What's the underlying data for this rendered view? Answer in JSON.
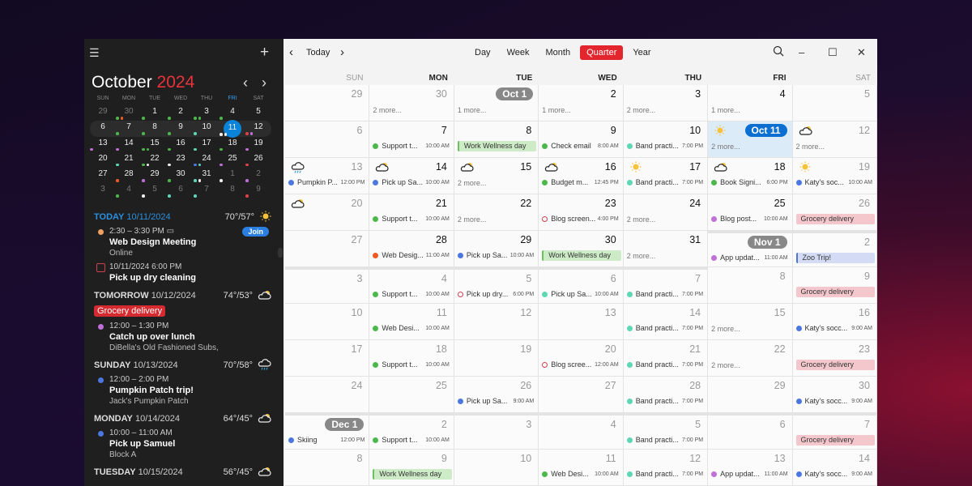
{
  "colors": {
    "green": "#4cb84c",
    "teal": "#5fd6b4",
    "blue": "#4a78e0",
    "purple": "#c070d8",
    "orange": "#ee5a20",
    "red": "#e0404a",
    "white": "#eeeeee",
    "accent": "#e3262d",
    "today": "#0a84d8",
    "wellness": "#cdebc6",
    "wellnessBar": "#6cc060",
    "grocery": "#f4c7cc",
    "zoo": "#d3dcf4",
    "zooBar": "#5077d0"
  },
  "sidebar": {
    "month": "October",
    "year": "2024",
    "menu_icon": "hamburger-icon",
    "add_icon": "plus-icon",
    "weekdays": [
      "SUN",
      "MON",
      "TUE",
      "WED",
      "THU",
      "FRI",
      "SAT"
    ],
    "mini_weeks": [
      [
        {
          "d": "29",
          "o": 1
        },
        {
          "d": "30",
          "o": 1,
          "dots": [
            "green",
            "orange"
          ]
        },
        {
          "d": "1",
          "dots": [
            "green"
          ]
        },
        {
          "d": "2",
          "dots": [
            "green"
          ]
        },
        {
          "d": "3",
          "dots": [
            "green",
            "green"
          ]
        },
        {
          "d": "4",
          "dots": [
            "green"
          ]
        },
        {
          "d": "5"
        }
      ],
      [
        {
          "d": "6"
        },
        {
          "d": "7",
          "dots": [
            "green"
          ]
        },
        {
          "d": "8",
          "dots": [
            "green"
          ]
        },
        {
          "d": "9",
          "dots": [
            "green"
          ]
        },
        {
          "d": "10",
          "dots": [
            "teal"
          ]
        },
        {
          "d": "11",
          "today": 1,
          "dots": [
            "white",
            "white"
          ]
        },
        {
          "d": "12",
          "dots": [
            "red",
            "purple"
          ]
        }
      ],
      [
        {
          "d": "13",
          "dots": [
            "purple"
          ]
        },
        {
          "d": "14",
          "dots": [
            "purple"
          ]
        },
        {
          "d": "15",
          "dots": [
            "green",
            "green"
          ]
        },
        {
          "d": "16",
          "dots": [
            "green"
          ]
        },
        {
          "d": "17",
          "dots": [
            "teal"
          ]
        },
        {
          "d": "18",
          "dots": [
            "green"
          ]
        },
        {
          "d": "19",
          "dots": [
            "purple"
          ]
        }
      ],
      [
        {
          "d": "20"
        },
        {
          "d": "21",
          "dots": [
            "teal"
          ]
        },
        {
          "d": "22",
          "dots": [
            "green",
            "white"
          ]
        },
        {
          "d": "23",
          "dots": [
            "white"
          ]
        },
        {
          "d": "24",
          "dots": [
            "blue",
            "teal"
          ]
        },
        {
          "d": "25",
          "dots": [
            "purple"
          ]
        },
        {
          "d": "26",
          "dots": [
            "red"
          ]
        }
      ],
      [
        {
          "d": "27"
        },
        {
          "d": "28",
          "dots": [
            "orange"
          ]
        },
        {
          "d": "29",
          "dots": [
            "purple"
          ]
        },
        {
          "d": "30",
          "dots": [
            "green"
          ]
        },
        {
          "d": "31",
          "dots": [
            "teal",
            "white"
          ]
        },
        {
          "d": "1",
          "o": 1,
          "dots": [
            "white"
          ]
        },
        {
          "d": "2",
          "o": 1,
          "dots": [
            "purple"
          ]
        }
      ],
      [
        {
          "d": "3",
          "o": 1
        },
        {
          "d": "4",
          "o": 1,
          "dots": [
            "green"
          ]
        },
        {
          "d": "5",
          "o": 1,
          "dots": [
            "white"
          ]
        },
        {
          "d": "6",
          "o": 1,
          "dots": [
            "teal"
          ]
        },
        {
          "d": "7",
          "o": 1,
          "dots": [
            "teal"
          ]
        },
        {
          "d": "8",
          "o": 1
        },
        {
          "d": "9",
          "o": 1,
          "dots": [
            "red"
          ]
        }
      ]
    ],
    "agenda": [
      {
        "day": "TODAY",
        "date": "10/11/2024",
        "temp": "70°/57°",
        "weather": "sun",
        "today": true,
        "items": [
          {
            "kind": "dot",
            "color": "#f0a060",
            "time": "2:30 – 3:30 PM",
            "video": "video-icon",
            "title": "Web Design Meeting",
            "loc": "Online",
            "join": "Join"
          },
          {
            "kind": "task",
            "time": "10/11/2024 6:00 PM",
            "title": "Pick up dry cleaning"
          }
        ]
      },
      {
        "day": "TOMORROW",
        "date": "10/12/2024",
        "temp": "74°/53°",
        "weather": "partly-cloudy",
        "allday": "Grocery delivery",
        "items": [
          {
            "kind": "dot",
            "color": "#c070d8",
            "time": "12:00 – 1:30 PM",
            "title": "Catch up over lunch",
            "loc": "DiBella's Old Fashioned Subs,"
          }
        ]
      },
      {
        "day": "SUNDAY",
        "date": "10/13/2024",
        "temp": "70°/58°",
        "weather": "rain",
        "items": [
          {
            "kind": "dot",
            "color": "#4a78e0",
            "time": "12:00 – 2:00 PM",
            "title": "Pumpkin Patch trip!",
            "loc": "Jack's Pumpkin Patch"
          }
        ]
      },
      {
        "day": "MONDAY",
        "date": "10/14/2024",
        "temp": "64°/45°",
        "weather": "partly-cloudy",
        "items": [
          {
            "kind": "dot",
            "color": "#4a78e0",
            "time": "10:00 – 11:00 AM",
            "title": "Pick up Samuel",
            "loc": "Block A"
          }
        ]
      },
      {
        "day": "TUESDAY",
        "date": "10/15/2024",
        "temp": "56°/45°",
        "weather": "partly-cloudy",
        "items": []
      }
    ]
  },
  "toolbar": {
    "prev": "‹",
    "today": "Today",
    "next": "›",
    "views": [
      "Day",
      "Week",
      "Month",
      "Quarter",
      "Year"
    ],
    "active_view": "Quarter",
    "search_icon": "search-icon"
  },
  "grid": {
    "weekdays": [
      "SUN",
      "MON",
      "TUE",
      "WED",
      "THU",
      "FRI",
      "SAT"
    ],
    "weeks": [
      [
        {
          "d": "29",
          "m": "p"
        },
        {
          "d": "30",
          "m": "p",
          "more": "2 more..."
        },
        {
          "badge": "Oct 1",
          "more": "1 more..."
        },
        {
          "d": "2",
          "more": "1 more..."
        },
        {
          "d": "3",
          "more": "2 more..."
        },
        {
          "d": "4",
          "more": "1 more..."
        },
        {
          "d": "5"
        }
      ],
      [
        {
          "d": "6"
        },
        {
          "d": "7",
          "ev": {
            "c": "green",
            "t": "Support t...",
            "tm": "10:00 AM"
          }
        },
        {
          "d": "8",
          "all": {
            "t": "Work Wellness day",
            "k": "wellness"
          }
        },
        {
          "d": "9",
          "ev": {
            "c": "green",
            "t": "Check email",
            "tm": "8:00 AM"
          }
        },
        {
          "d": "10",
          "ev": {
            "c": "teal",
            "t": "Band practi...",
            "tm": "7:00 PM"
          }
        },
        {
          "badge": "Oct 11",
          "today": true,
          "wx": "sun",
          "more": "2 more..."
        },
        {
          "d": "12",
          "wx": "partly-cloudy",
          "more": "2 more..."
        }
      ],
      [
        {
          "d": "13",
          "wx": "rain",
          "ev": {
            "c": "blue",
            "t": "Pumpkin P...",
            "tm": "12:00 PM"
          }
        },
        {
          "d": "14",
          "wx": "partly-cloudy",
          "ev": {
            "c": "blue",
            "t": "Pick up Sa...",
            "tm": "10:00 AM"
          }
        },
        {
          "d": "15",
          "wx": "partly-cloudy",
          "more": "2 more..."
        },
        {
          "d": "16",
          "wx": "partly-cloudy",
          "ev": {
            "c": "green",
            "t": "Budget m...",
            "tm": "12:45 PM"
          }
        },
        {
          "d": "17",
          "wx": "sun",
          "ev": {
            "c": "teal",
            "t": "Band practi...",
            "tm": "7:00 PM"
          }
        },
        {
          "d": "18",
          "wx": "partly-cloudy",
          "ev": {
            "c": "green",
            "t": "Book Signi...",
            "tm": "6:00 PM"
          }
        },
        {
          "d": "19",
          "wx": "sun",
          "ev": {
            "c": "blue",
            "t": "Katy's soc...",
            "tm": "10:00 AM"
          }
        }
      ],
      [
        {
          "d": "20",
          "wx": "partly-cloudy"
        },
        {
          "d": "21",
          "ev": {
            "c": "green",
            "t": "Support t...",
            "tm": "10:00 AM"
          }
        },
        {
          "d": "22",
          "more": "2 more..."
        },
        {
          "d": "23",
          "ev": {
            "c": "red",
            "o": true,
            "t": "Blog screen...",
            "tm": "4:00 PM"
          }
        },
        {
          "d": "24",
          "more": "2 more..."
        },
        {
          "d": "25",
          "ev": {
            "c": "purple",
            "t": "Blog post...",
            "tm": "10:00 AM"
          }
        },
        {
          "d": "26",
          "all": {
            "t": "Grocery delivery",
            "k": "grocery"
          }
        }
      ],
      [
        {
          "d": "27"
        },
        {
          "d": "28",
          "ev": {
            "c": "orange",
            "t": "Web Desig...",
            "tm": "11:00 AM"
          }
        },
        {
          "d": "29",
          "ev": {
            "c": "blue",
            "t": "Pick up Sa...",
            "tm": "10:00 AM"
          }
        },
        {
          "d": "30",
          "all": {
            "t": "Work Wellness day",
            "k": "wellness"
          }
        },
        {
          "d": "31",
          "more": "2 more..."
        },
        {
          "badge": "Nov 1",
          "m": "n",
          "ev": {
            "c": "purple",
            "t": "App updat...",
            "tm": "11:00 AM"
          }
        },
        {
          "d": "2",
          "m": "n",
          "all": {
            "t": "Zoo Trip!",
            "k": "zoo"
          }
        }
      ],
      [
        {
          "d": "3",
          "m": "n"
        },
        {
          "d": "4",
          "m": "n",
          "ev": {
            "c": "green",
            "t": "Support t...",
            "tm": "10:00 AM"
          }
        },
        {
          "d": "5",
          "m": "n",
          "ev": {
            "c": "red",
            "o": true,
            "t": "Pick up dry...",
            "tm": "6:00 PM"
          }
        },
        {
          "d": "6",
          "m": "n",
          "ev": {
            "c": "teal",
            "t": "Pick up Sa...",
            "tm": "10:00 AM"
          }
        },
        {
          "d": "7",
          "m": "n",
          "ev": {
            "c": "teal",
            "t": "Band practi...",
            "tm": "7:00 PM"
          }
        },
        {
          "d": "8",
          "m": "n"
        },
        {
          "d": "9",
          "m": "n",
          "all": {
            "t": "Grocery delivery",
            "k": "grocery"
          }
        }
      ],
      [
        {
          "d": "10",
          "m": "n"
        },
        {
          "d": "11",
          "m": "n",
          "ev": {
            "c": "green",
            "t": "Web Desi...",
            "tm": "10:00 AM"
          }
        },
        {
          "d": "12",
          "m": "n"
        },
        {
          "d": "13",
          "m": "n"
        },
        {
          "d": "14",
          "m": "n",
          "ev": {
            "c": "teal",
            "t": "Band practi...",
            "tm": "7:00 PM"
          }
        },
        {
          "d": "15",
          "m": "n",
          "more": "2 more..."
        },
        {
          "d": "16",
          "m": "n",
          "ev": {
            "c": "blue",
            "t": "Katy's socc...",
            "tm": "9:00 AM"
          }
        }
      ],
      [
        {
          "d": "17",
          "m": "n"
        },
        {
          "d": "18",
          "m": "n",
          "ev": {
            "c": "green",
            "t": "Support t...",
            "tm": "10:00 AM"
          }
        },
        {
          "d": "19",
          "m": "n"
        },
        {
          "d": "20",
          "m": "n",
          "ev": {
            "c": "red",
            "o": true,
            "t": "Blog scree...",
            "tm": "12:00 AM"
          }
        },
        {
          "d": "21",
          "m": "n",
          "ev": {
            "c": "teal",
            "t": "Band practi...",
            "tm": "7:00 PM"
          }
        },
        {
          "d": "22",
          "m": "n",
          "more": "2 more..."
        },
        {
          "d": "23",
          "m": "n",
          "all": {
            "t": "Grocery delivery",
            "k": "grocery"
          }
        }
      ],
      [
        {
          "d": "24",
          "m": "n"
        },
        {
          "d": "25",
          "m": "n"
        },
        {
          "d": "26",
          "m": "n",
          "ev": {
            "c": "blue",
            "t": "Pick up Sa...",
            "tm": "9:00 AM"
          }
        },
        {
          "d": "27",
          "m": "n"
        },
        {
          "d": "28",
          "m": "n",
          "ev": {
            "c": "teal",
            "t": "Band practi...",
            "tm": "7:00 PM"
          }
        },
        {
          "d": "29",
          "m": "n"
        },
        {
          "d": "30",
          "m": "n",
          "ev": {
            "c": "blue",
            "t": "Katy's socc...",
            "tm": "9:00 AM"
          }
        }
      ],
      [
        {
          "badge": "Dec 1",
          "m": "d",
          "sep": true,
          "ev": {
            "c": "blue",
            "t": "Skiing",
            "tm": "12:00 PM"
          }
        },
        {
          "d": "2",
          "m": "d",
          "sep": true,
          "ev": {
            "c": "green",
            "t": "Support t...",
            "tm": "10:00 AM"
          }
        },
        {
          "d": "3",
          "m": "d",
          "sep": true
        },
        {
          "d": "4",
          "m": "d",
          "sep": true
        },
        {
          "d": "5",
          "m": "d",
          "sep": true,
          "ev": {
            "c": "teal",
            "t": "Band practi...",
            "tm": "7:00 PM"
          }
        },
        {
          "d": "6",
          "m": "d",
          "sep": true
        },
        {
          "d": "7",
          "m": "d",
          "sep": true,
          "all": {
            "t": "Grocery delivery",
            "k": "grocery"
          }
        }
      ],
      [
        {
          "d": "8",
          "m": "d"
        },
        {
          "d": "9",
          "m": "d",
          "all": {
            "t": "Work Wellness day",
            "k": "wellness"
          }
        },
        {
          "d": "10",
          "m": "d"
        },
        {
          "d": "11",
          "m": "d",
          "ev": {
            "c": "green",
            "t": "Web Desi...",
            "tm": "10:00 AM"
          }
        },
        {
          "d": "12",
          "m": "d",
          "ev": {
            "c": "teal",
            "t": "Band practi...",
            "tm": "7:00 PM"
          }
        },
        {
          "d": "13",
          "m": "d",
          "ev": {
            "c": "purple",
            "t": "App updat...",
            "tm": "11:00 AM"
          }
        },
        {
          "d": "14",
          "m": "d",
          "ev": {
            "c": "blue",
            "t": "Katy's socc...",
            "tm": "9:00 AM"
          }
        }
      ]
    ]
  }
}
